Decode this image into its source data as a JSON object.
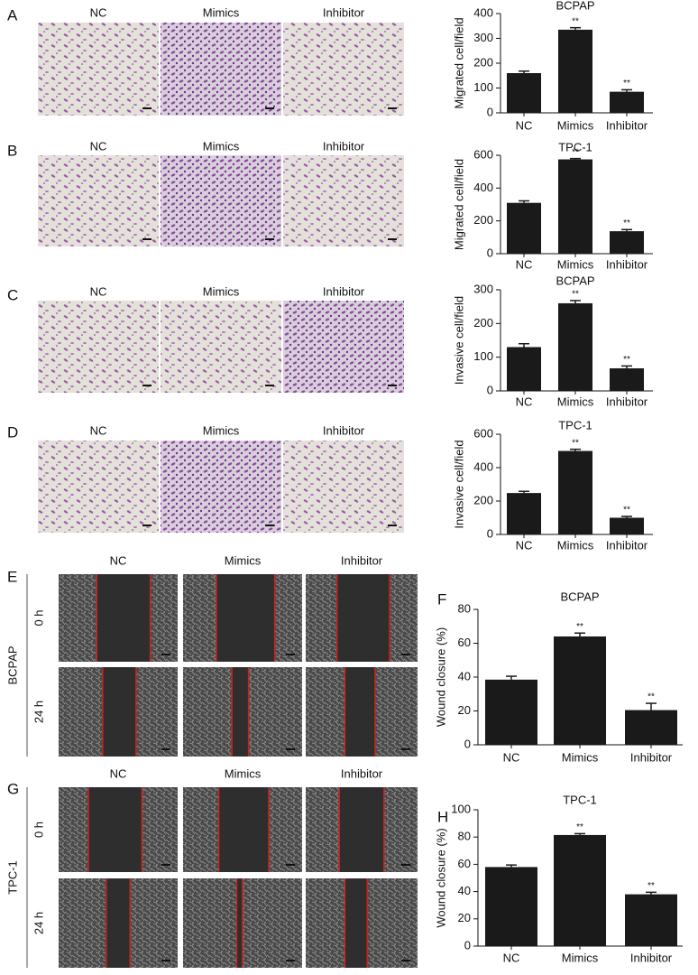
{
  "chart_data": [
    {
      "type": "bar",
      "title": "BCPAP",
      "y_label": "Migrated cell/field",
      "categories": [
        "NC",
        "Mimics",
        "Inhibitor"
      ],
      "values": [
        160,
        335,
        85
      ],
      "errors": [
        8,
        8,
        8
      ],
      "significance": [
        null,
        "**",
        "**"
      ],
      "color": "#1a1a1a",
      "ylim": [
        0,
        400
      ],
      "yticks": [
        0,
        100,
        200,
        300,
        400
      ]
    },
    {
      "type": "bar",
      "title": "TPC-1",
      "y_label": "Migrated cell/field",
      "categories": [
        "NC",
        "Mimics",
        "Inhibitor"
      ],
      "values": [
        310,
        575,
        137
      ],
      "errors": [
        12,
        5,
        10
      ],
      "significance": [
        null,
        "**",
        "**"
      ],
      "color": "#1a1a1a",
      "ylim": [
        0,
        600
      ],
      "yticks": [
        0,
        200,
        400,
        600
      ]
    },
    {
      "type": "bar",
      "title": "BCPAP",
      "y_label": "Invasive cell/field",
      "categories": [
        "NC",
        "Mimics",
        "Inhibitor"
      ],
      "values": [
        130,
        260,
        67
      ],
      "errors": [
        10,
        8,
        7
      ],
      "significance": [
        null,
        "**",
        "**"
      ],
      "color": "#1a1a1a",
      "ylim": [
        0,
        300
      ],
      "yticks": [
        0,
        100,
        200,
        300
      ]
    },
    {
      "type": "bar",
      "title": "TPC-1",
      "y_label": "Invasive cell/field",
      "categories": [
        "NC",
        "Mimics",
        "Inhibitor"
      ],
      "values": [
        248,
        500,
        100
      ],
      "errors": [
        10,
        10,
        8
      ],
      "significance": [
        null,
        "**",
        "**"
      ],
      "color": "#1a1a1a",
      "ylim": [
        0,
        600
      ],
      "yticks": [
        0,
        200,
        400,
        600
      ]
    },
    {
      "type": "bar",
      "panel": "F",
      "title": "BCPAP",
      "y_label": "Wound closure (%)",
      "categories": [
        "NC",
        "Mimics",
        "Inhibitor"
      ],
      "values": [
        38.5,
        64,
        20.5
      ],
      "errors": [
        2,
        2,
        4
      ],
      "significance": [
        null,
        "**",
        "**"
      ],
      "color": "#1a1a1a",
      "ylim": [
        0,
        80
      ],
      "yticks": [
        0,
        20,
        40,
        60,
        80
      ]
    },
    {
      "type": "bar",
      "panel": "H",
      "title": "TPC-1",
      "y_label": "Wound closure (%)",
      "categories": [
        "NC",
        "Mimics",
        "Inhibitor"
      ],
      "values": [
        58,
        81.5,
        38
      ],
      "errors": [
        1.5,
        1,
        1.5
      ],
      "significance": [
        null,
        "**",
        "**"
      ],
      "color": "#1a1a1a",
      "ylim": [
        0,
        100
      ],
      "yticks": [
        0,
        20,
        40,
        60,
        80,
        100
      ]
    }
  ],
  "image_panels": [
    {
      "letter": "A",
      "columns": [
        "NC",
        "Mimics",
        "Inhibitor"
      ]
    },
    {
      "letter": "B",
      "columns": [
        "NC",
        "Mimics",
        "Inhibitor"
      ]
    },
    {
      "letter": "C",
      "columns": [
        "NC",
        "Mimics",
        "Inhibitor"
      ]
    },
    {
      "letter": "D",
      "columns": [
        "NC",
        "Mimics",
        "Inhibitor"
      ]
    },
    {
      "letter": "E",
      "cell_line": "BCPAP",
      "columns": [
        "NC",
        "Mimics",
        "Inhibitor"
      ],
      "rows": [
        "0 h",
        "24 h"
      ]
    },
    {
      "letter": "G",
      "cell_line": "TPC-1",
      "columns": [
        "NC",
        "Mimics",
        "Inhibitor"
      ],
      "rows": [
        "0 h",
        "24 h"
      ]
    }
  ]
}
